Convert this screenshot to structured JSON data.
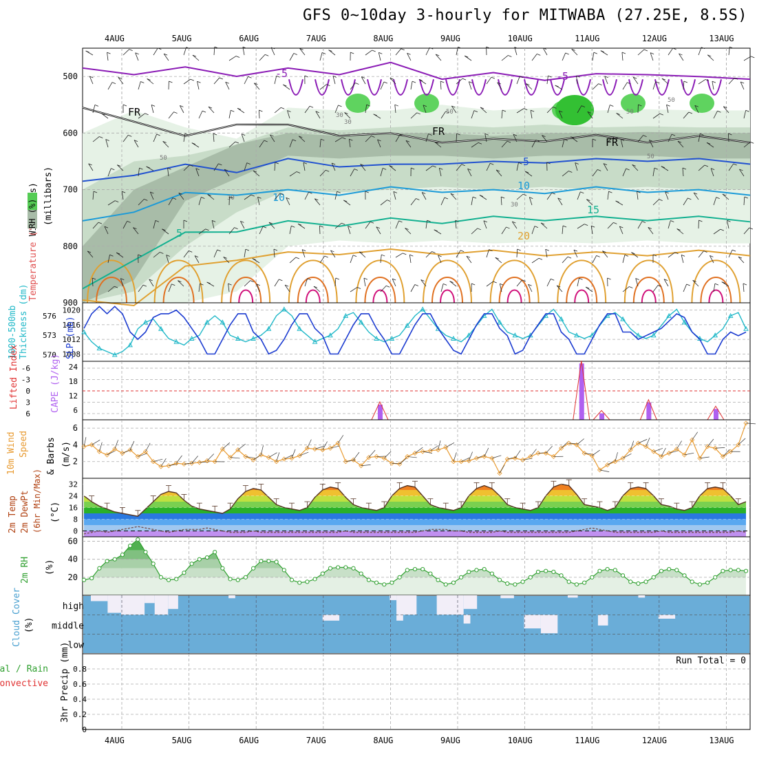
{
  "title": "GFS 0~10day 3-hourly for MITWABA (27.25E, 8.5S)",
  "colors": {
    "temp_purple": "#8a1ab5",
    "temp_blue": "#2050d0",
    "temp_lightblue": "#1a9ad8",
    "temp_green": "#12b090",
    "temp_orange": "#e0a030",
    "temp_darkorange": "#e07020",
    "temp_magenta": "#d0107a",
    "freezing": "#000000",
    "slp": "#1a3ad0",
    "thickness": "#20b8c8",
    "lifted": "#e03030",
    "cape": "#b060f0",
    "wind10": "#e89a30",
    "rh_line": "#30a030",
    "cloud_fill": "#6aadd8",
    "cloud_gap": "#f2eef8",
    "grid": "#aaaaaa"
  },
  "chart_data": [
    {
      "id": "upper",
      "type": "contour",
      "ylabel_parts": [
        "Wind (m/s)",
        "Temperature (°C)",
        "RH (%)",
        "(millibars)"
      ],
      "yticks": [
        500,
        600,
        700,
        800,
        900
      ],
      "ylim": [
        450,
        900
      ],
      "xlabels": [
        "4AUG",
        "5AUG",
        "6AUG",
        "7AUG",
        "8AUG",
        "9AUG",
        "10AUG",
        "11AUG",
        "12AUG",
        "13AUG"
      ],
      "contour_labels": [
        "-5",
        "FR",
        "FR",
        "FR",
        "-5",
        "5",
        "10",
        "10",
        "15",
        "20",
        "5",
        "-5"
      ],
      "rh_labels": [
        "50",
        "50",
        "50",
        "30",
        "30",
        "30",
        "50",
        "30",
        "50"
      ],
      "isotherms": [
        {
          "label": "-5",
          "level": "purple",
          "p": [
            490,
            492,
            488,
            495,
            490,
            492,
            480,
            500,
            498,
            502,
            500,
            492,
            505,
            500
          ]
        },
        {
          "label": "FR",
          "level": "black",
          "p": [
            560,
            575,
            610,
            580,
            590,
            600,
            605,
            612,
            615,
            610,
            608,
            612,
            610,
            612
          ]
        },
        {
          "label": "-5",
          "level": "blue",
          "p": [
            690,
            670,
            660,
            665,
            650,
            655,
            660,
            650,
            655,
            648,
            650,
            645,
            650,
            650
          ]
        },
        {
          "label": "10",
          "level": "lightblue",
          "p": [
            760,
            735,
            710,
            705,
            705,
            705,
            700,
            700,
            705,
            702,
            700,
            700,
            705,
            705
          ]
        },
        {
          "label": "15",
          "level": "green",
          "p": [
            880,
            820,
            780,
            770,
            760,
            760,
            755,
            755,
            752,
            750,
            752,
            750,
            752,
            752
          ]
        },
        {
          "label": "20",
          "level": "orange",
          "p": [
            900,
            900,
            840,
            820,
            815,
            810,
            810,
            810,
            812,
            812,
            815,
            812,
            812,
            812
          ]
        }
      ]
    },
    {
      "id": "slp",
      "type": "line",
      "ylabel_left": "1000-500mb Thickness (dm)",
      "ylabel_right": "SLP (mb)",
      "yticks_left": [
        "576",
        "573",
        "570"
      ],
      "yticks_right": [
        "1020",
        "1016",
        "1012",
        "1008"
      ],
      "series": [
        {
          "name": "SLP",
          "values": [
            1015,
            1019,
            1021,
            1019,
            1021,
            1019,
            1014,
            1012,
            1014,
            1018,
            1019,
            1019,
            1020,
            1018,
            1015,
            1012,
            1008,
            1008,
            1012,
            1016,
            1019,
            1019,
            1014,
            1012,
            1008,
            1009,
            1012,
            1016,
            1019,
            1019,
            1015,
            1013,
            1008,
            1008,
            1012,
            1016,
            1019,
            1019,
            1015,
            1012,
            1008,
            1008,
            1012,
            1016,
            1019,
            1019,
            1015,
            1012,
            1009,
            1008,
            1012,
            1016,
            1019,
            1019,
            1015,
            1013,
            1008,
            1009,
            1013,
            1016,
            1019,
            1019,
            1014,
            1012,
            1008,
            1008,
            1012,
            1016,
            1019,
            1019,
            1014,
            1014,
            1012,
            1013,
            1014,
            1015,
            1017,
            1019,
            1018,
            1014,
            1012,
            1008,
            1008,
            1012,
            1014,
            1013,
            1014
          ]
        },
        {
          "name": "Thickness",
          "values": [
            573.5,
            572,
            571,
            570.5,
            570,
            570.5,
            571.5,
            574,
            575,
            575.5,
            574,
            572.5,
            572,
            571.5,
            572.5,
            573,
            575,
            576,
            575,
            573,
            572.5,
            572,
            572.5,
            573,
            574,
            576,
            577,
            576,
            574,
            573,
            572,
            572.5,
            573,
            574,
            576,
            576.5,
            575,
            573.5,
            572.5,
            572,
            572.5,
            573,
            574.5,
            576,
            577,
            575.5,
            574,
            573,
            572.5,
            572,
            573,
            574.5,
            576,
            577,
            575,
            573.5,
            573,
            572.5,
            573,
            574.5,
            576,
            577,
            575.5,
            573.5,
            573,
            572.5,
            573,
            574.5,
            576,
            576.5,
            575.5,
            574,
            573,
            572.5,
            573,
            574.5,
            576,
            577,
            575,
            573.5,
            572.5,
            572,
            573,
            574,
            576,
            576.5,
            574
          ]
        }
      ]
    },
    {
      "id": "lifted",
      "type": "bar",
      "ylabel_left": "Lifted Index",
      "ylabel_right": "CAPE (J/kg)",
      "yticks_left": [
        "-6",
        "-3",
        "0",
        "3",
        "6"
      ],
      "yticks_right": [
        "24",
        "18",
        "12",
        "6"
      ],
      "cape_bars": [
        {
          "day": 3.85,
          "value": 7
        },
        {
          "day": 6.85,
          "value": 26
        },
        {
          "day": 7.15,
          "value": 3
        },
        {
          "day": 7.85,
          "value": 8
        },
        {
          "day": 8.85,
          "value": 5
        }
      ]
    },
    {
      "id": "wind10",
      "type": "line",
      "ylabel_parts": [
        "10m Wind",
        "Speed",
        "& Barbs",
        "(m/s)"
      ],
      "yticks": [
        "6",
        "4",
        "2"
      ],
      "ylim": [
        0,
        7
      ],
      "values": [
        3.8,
        4.0,
        3.2,
        2.8,
        3.5,
        3.0,
        3.4,
        2.6,
        3.2,
        2.0,
        1.4,
        1.5,
        1.8,
        1.7,
        1.8,
        1.9,
        2.1,
        2.0,
        3.5,
        2.5,
        3.4,
        2.6,
        2.2,
        2.8,
        2.5,
        2.0,
        2.3,
        2.4,
        2.7,
        3.6,
        3.5,
        3.4,
        3.6,
        4.2,
        2.0,
        2.2,
        1.5,
        2.5,
        2.6,
        2.4,
        1.8,
        1.7,
        2.6,
        3.0,
        3.2,
        3.3,
        3.4,
        3.7,
        2.0,
        2.0,
        2.1,
        2.4,
        2.6,
        2.4,
        0.6,
        2.3,
        2.4,
        2.2,
        2.6,
        3.0,
        3.0,
        2.6,
        3.6,
        4.2,
        4.0,
        3.0,
        2.7,
        1.0,
        1.6,
        2.0,
        2.4,
        3.4,
        4.2,
        3.8,
        3.2,
        2.6,
        3.0,
        3.5,
        2.8,
        4.6,
        2.4,
        3.8,
        3.6,
        2.6,
        3.2,
        4.0,
        6.6
      ]
    },
    {
      "id": "temp",
      "type": "area",
      "ylabel_parts": [
        "2m Temp",
        "2m DewPt",
        "(6hr Min/Max)",
        "(°C)"
      ],
      "yticks": [
        "32",
        "24",
        "16",
        "8",
        "0"
      ],
      "ylim": [
        -4,
        36
      ],
      "temp": [
        24,
        20,
        17,
        15,
        13,
        12,
        11,
        10,
        15,
        20,
        25,
        27,
        26,
        21,
        17,
        15,
        14,
        13,
        12,
        15,
        22,
        27,
        29,
        28,
        23,
        18,
        16,
        15,
        14,
        16,
        23,
        28,
        30,
        29,
        23,
        18,
        16,
        15,
        14,
        16,
        24,
        29,
        31,
        30,
        24,
        18,
        16,
        15,
        14,
        16,
        24,
        29,
        31,
        29,
        24,
        18,
        16,
        15,
        14,
        16,
        24,
        30,
        32,
        31,
        25,
        18,
        17,
        16,
        14,
        16,
        24,
        29,
        30,
        29,
        24,
        18,
        17,
        15,
        14,
        16,
        24,
        29,
        30,
        29,
        24,
        18,
        20
      ],
      "dew": [
        -2,
        -1,
        0,
        -1,
        0,
        1,
        2,
        3,
        2,
        1,
        0,
        -1,
        0,
        1,
        1,
        1,
        2,
        1,
        0,
        -1,
        -1,
        -1,
        0,
        -1,
        -1,
        -1,
        -1,
        -1,
        -1,
        -1,
        -1,
        -1,
        -1,
        -1,
        0,
        -1,
        -1,
        -1,
        -1,
        -1,
        -1,
        -1,
        -1,
        -1,
        0,
        1,
        1,
        1,
        0,
        0,
        -1,
        -1,
        -1,
        -1,
        0,
        -1,
        -1,
        -1,
        -1,
        -1,
        -1,
        -1,
        -1,
        -1,
        0,
        1,
        2,
        1,
        0,
        -1,
        -1,
        -1,
        -1,
        -1,
        -1,
        0,
        -1,
        -1,
        -1,
        -1,
        -1,
        -1,
        -1,
        -1,
        -1,
        0,
        -1
      ]
    },
    {
      "id": "rh",
      "type": "area",
      "ylabel_parts": [
        "2m RH",
        "(%)"
      ],
      "yticks": [
        "60",
        "40",
        "20"
      ],
      "ylim": [
        0,
        65
      ],
      "values": [
        17,
        19,
        30,
        38,
        40,
        45,
        55,
        62,
        48,
        35,
        20,
        17,
        18,
        25,
        35,
        40,
        42,
        48,
        30,
        18,
        17,
        20,
        30,
        38,
        38,
        37,
        28,
        17,
        14,
        15,
        18,
        24,
        30,
        31,
        31,
        30,
        24,
        17,
        14,
        12,
        14,
        20,
        28,
        29,
        29,
        24,
        17,
        12,
        14,
        20,
        26,
        28,
        29,
        24,
        17,
        13,
        12,
        15,
        20,
        26,
        27,
        26,
        22,
        15,
        12,
        14,
        20,
        27,
        29,
        28,
        22,
        15,
        13,
        15,
        20,
        27,
        29,
        28,
        22,
        15,
        12,
        14,
        20,
        27,
        28,
        28,
        27
      ]
    },
    {
      "id": "cloud",
      "type": "bar",
      "ylabel_parts": [
        "Cloud Cover",
        "(%)"
      ],
      "yticks": [
        "high",
        "middle",
        "low"
      ],
      "high_gaps": [
        {
          "start": 0.0,
          "end": 0.25,
          "level": 0.3
        },
        {
          "start": 0.25,
          "end": 0.45,
          "level": 0.9
        },
        {
          "start": 0.45,
          "end": 0.8,
          "level": 1.0
        },
        {
          "start": 0.8,
          "end": 0.95,
          "level": 0.4
        },
        {
          "start": 0.95,
          "end": 1.15,
          "level": 1.0
        },
        {
          "start": 1.15,
          "end": 1.3,
          "level": 0.7
        },
        {
          "start": 2.05,
          "end": 2.15,
          "level": 0.15
        },
        {
          "start": 4.45,
          "end": 4.55,
          "level": 0.25
        },
        {
          "start": 4.55,
          "end": 4.85,
          "level": 1.0
        },
        {
          "start": 5.15,
          "end": 5.55,
          "level": 1.0
        },
        {
          "start": 5.55,
          "end": 5.75,
          "level": 0.7
        },
        {
          "start": 6.1,
          "end": 6.3,
          "level": 0.15
        },
        {
          "start": 7.1,
          "end": 7.25,
          "level": 0.12
        },
        {
          "start": 8.15,
          "end": 8.25,
          "level": 0.12
        }
      ],
      "middle_gaps": [
        {
          "start": 3.45,
          "end": 3.7,
          "level": 0.3
        },
        {
          "start": 4.55,
          "end": 4.65,
          "level": 0.3
        },
        {
          "start": 5.55,
          "end": 5.65,
          "level": 0.45
        },
        {
          "start": 6.45,
          "end": 6.7,
          "level": 0.7
        },
        {
          "start": 6.7,
          "end": 6.95,
          "level": 0.95
        },
        {
          "start": 7.55,
          "end": 7.7,
          "level": 0.55
        },
        {
          "start": 8.45,
          "end": 8.7,
          "level": 0.2
        }
      ]
    },
    {
      "id": "precip",
      "type": "bar",
      "ylabel_left": "Total / Rain",
      "ylabel_left2": "Convective",
      "ylabel_parts": [
        "3hr Precip (mm)"
      ],
      "yticks": [
        "0.8",
        "0.6",
        "0.4",
        "0.2",
        "0"
      ],
      "ylim": [
        0,
        1
      ],
      "run_total": "Run Total = 0",
      "values": []
    }
  ]
}
